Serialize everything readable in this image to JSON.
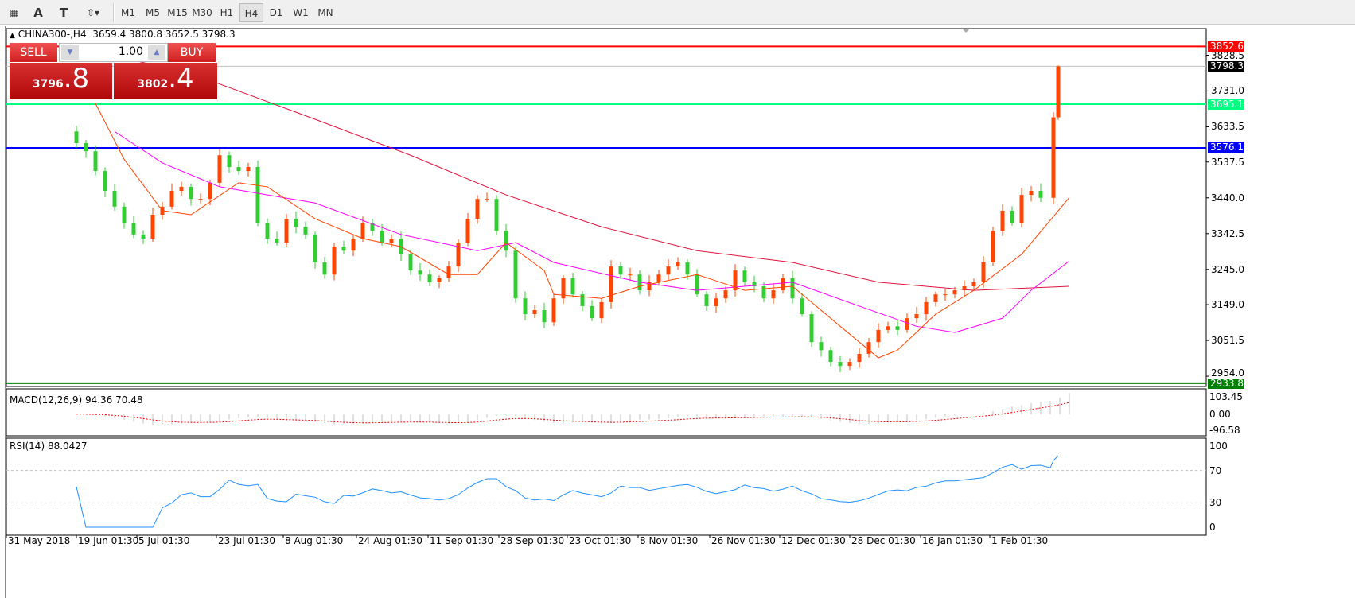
{
  "toolbar": {
    "tools": [
      "grid-fibo-icon",
      "text-A-icon",
      "text-label-icon",
      "arrows-icon"
    ],
    "timeframes": [
      "M1",
      "M5",
      "M15",
      "M30",
      "H1",
      "H4",
      "D1",
      "W1",
      "MN"
    ],
    "active_timeframe": "H4"
  },
  "header": {
    "symbol": "CHINA300-,H4",
    "ohlc": "3659.4 3800.8 3652.5 3798.3"
  },
  "trade": {
    "sell_label": "SELL",
    "buy_label": "BUY",
    "lot": "1.00",
    "sell_big": "3796",
    "sell_small": ".8",
    "buy_big": "3802",
    "buy_small": ".4"
  },
  "colors": {
    "up": "#ff4500",
    "down": "#32cd32",
    "ma_fast": "#ff4500",
    "ma_mid": "#ff00ff",
    "ma_slow": "#dc143c",
    "rsi": "#1e90ff",
    "macd_signal": "#ff0000",
    "macd_hist": "#c0c0c0"
  },
  "chart_data": {
    "type": "candlestick",
    "ylim": [
      2926,
      3901
    ],
    "price_ticks": [
      "3828.5",
      "3731.0",
      "3633.5",
      "3537.5",
      "3440.0",
      "3342.5",
      "3245.0",
      "3149.0",
      "3051.5",
      "2954.0"
    ],
    "date_ticks": [
      "31 May 2018",
      "19 Jun 01:30",
      "5 Jul 01:30",
      "23 Jul 01:30",
      "8 Aug 01:30",
      "24 Aug 01:30",
      "11 Sep 01:30",
      "28 Sep 01:30",
      "23 Oct 01:30",
      "8 Nov 01:30",
      "26 Nov 01:30",
      "12 Dec 01:30",
      "28 Dec 01:30",
      "16 Jan 01:30",
      "1 Feb 01:30"
    ],
    "closes": [
      3621,
      3589,
      3567,
      3513,
      3459,
      3416,
      3372,
      3340,
      3329,
      3394,
      3416,
      3459,
      3470,
      3437,
      3437,
      3481,
      3556,
      3524,
      3513,
      3524,
      3372,
      3329,
      3318,
      3383,
      3361,
      3340,
      3264,
      3231,
      3307,
      3296,
      3329,
      3372,
      3350,
      3318,
      3329,
      3286,
      3242,
      3231,
      3210,
      3221,
      3253,
      3318,
      3383,
      3437,
      3437,
      3350,
      3296,
      3166,
      3123,
      3134,
      3101,
      3166,
      3221,
      3177,
      3145,
      3112,
      3156,
      3253,
      3231,
      3231,
      3188,
      3210,
      3231,
      3253,
      3264,
      3231,
      3177,
      3145,
      3166,
      3188,
      3242,
      3210,
      3199,
      3166,
      3188,
      3221,
      3166,
      3123,
      3047,
      3025,
      2993,
      2982,
      2993,
      3015,
      3047,
      3080,
      3090,
      3080,
      3112,
      3123,
      3156,
      3177,
      3177,
      3188,
      3199,
      3210,
      3264,
      3350,
      3405,
      3372,
      3448,
      3459,
      3440,
      3659.4,
      3798.3
    ],
    "last_candle": {
      "open": 3659.4,
      "high": 3800.8,
      "low": 3652.5,
      "close": 3798.3
    },
    "ma_slow": [
      [
        0,
        3850
      ],
      [
        12,
        3779
      ],
      [
        25,
        3654
      ],
      [
        35,
        3556
      ],
      [
        45,
        3448
      ],
      [
        55,
        3361
      ],
      [
        65,
        3296
      ],
      [
        75,
        3264
      ],
      [
        84,
        3210
      ],
      [
        94,
        3188
      ],
      [
        104,
        3199
      ]
    ],
    "ma_mid": [
      [
        4,
        3621
      ],
      [
        9,
        3535
      ],
      [
        15,
        3470
      ],
      [
        25,
        3426
      ],
      [
        34,
        3340
      ],
      [
        42,
        3296
      ],
      [
        46,
        3318
      ],
      [
        50,
        3264
      ],
      [
        59,
        3210
      ],
      [
        65,
        3188
      ],
      [
        75,
        3210
      ],
      [
        82,
        3145
      ],
      [
        88,
        3090
      ],
      [
        92,
        3073
      ],
      [
        97,
        3112
      ],
      [
        100,
        3188
      ],
      [
        104,
        3268
      ]
    ],
    "ma_fast": [
      [
        2,
        3697
      ],
      [
        5,
        3545
      ],
      [
        9,
        3405
      ],
      [
        12,
        3394
      ],
      [
        17,
        3481
      ],
      [
        20,
        3470
      ],
      [
        25,
        3383
      ],
      [
        30,
        3329
      ],
      [
        34,
        3307
      ],
      [
        39,
        3231
      ],
      [
        42,
        3231
      ],
      [
        45,
        3318
      ],
      [
        49,
        3242
      ],
      [
        50,
        3177
      ],
      [
        55,
        3166
      ],
      [
        59,
        3199
      ],
      [
        65,
        3231
      ],
      [
        70,
        3188
      ],
      [
        75,
        3199
      ],
      [
        80,
        3090
      ],
      [
        84,
        3004
      ],
      [
        86,
        3025
      ],
      [
        90,
        3123
      ],
      [
        94,
        3188
      ],
      [
        99,
        3286
      ],
      [
        104,
        3441
      ]
    ],
    "hlines": [
      {
        "value": "3852.6",
        "color": "#ff0000",
        "text_color": "#ffffff"
      },
      {
        "value": "3798.3",
        "color": "#c0c0c0",
        "label_bg": "#000000"
      },
      {
        "value": "3695.1",
        "color": "#00ff7f",
        "text_color": "#ffffff"
      },
      {
        "value": "3576.1",
        "color": "#0000ff",
        "text_color": "#ffffff"
      },
      {
        "value": "2933.8",
        "color": "#008000",
        "text_color": "#ffffff"
      }
    ],
    "macd": {
      "label": "MACD(12,26,9) 94.36 70.48",
      "ticks": [
        "103.45",
        "0.00",
        "-96.58"
      ],
      "range": [
        -96.58,
        103.45
      ]
    },
    "rsi": {
      "label": "RSI(14) 88.0427",
      "ticks": [
        "100",
        "70",
        "30",
        "0"
      ],
      "levels": [
        70,
        30
      ]
    }
  }
}
